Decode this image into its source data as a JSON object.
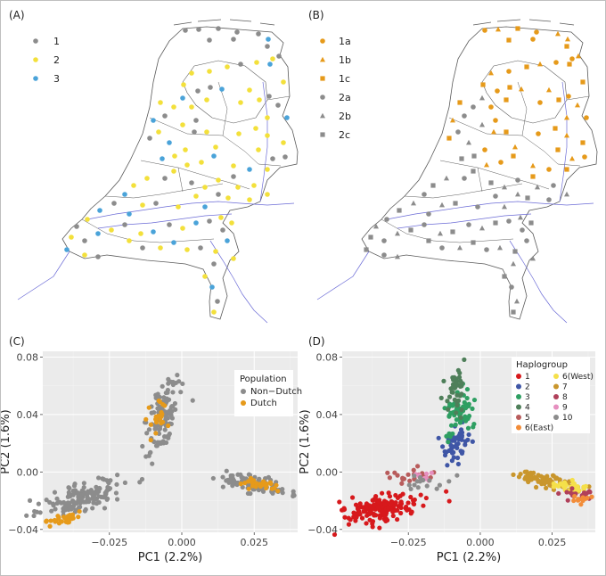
{
  "panel_labels": [
    "(A)",
    "(B)",
    "(C)",
    "(D)"
  ],
  "colors": {
    "grey": "#8c8c8c",
    "yellow": "#f3e03b",
    "blue": "#4aa3d9",
    "orange": "#e69a1a",
    "panel_bg": "#ebebeb",
    "map_line": "#5a5a5a",
    "river": "#6b6bd6"
  },
  "chart_data": [
    {
      "type": "scatter",
      "panel": "A",
      "legend": [
        {
          "label": "1",
          "color": "#8c8c8c",
          "shape": "circle"
        },
        {
          "label": "2",
          "color": "#f3e03b",
          "shape": "circle"
        },
        {
          "label": "3",
          "color": "#4aa3d9",
          "shape": "circle"
        }
      ],
      "legend_placement": "top-left"
    },
    {
      "type": "scatter",
      "panel": "B",
      "legend": [
        {
          "label": "1a",
          "color": "#e69a1a",
          "shape": "circle"
        },
        {
          "label": "1b",
          "color": "#e69a1a",
          "shape": "triangle"
        },
        {
          "label": "1c",
          "color": "#e69a1a",
          "shape": "square"
        },
        {
          "label": "2a",
          "color": "#8c8c8c",
          "shape": "circle"
        },
        {
          "label": "2b",
          "color": "#8c8c8c",
          "shape": "triangle"
        },
        {
          "label": "2c",
          "color": "#8c8c8c",
          "shape": "square"
        }
      ],
      "legend_placement": "top-left"
    },
    {
      "type": "scatter",
      "panel": "C",
      "xlabel": "PC1 (2.2%)",
      "ylabel": "PC2 (1.6%)",
      "xlim": [
        -0.048,
        0.04
      ],
      "ylim": [
        -0.042,
        0.084
      ],
      "xticks": [
        -0.025,
        0.0,
        0.025
      ],
      "xtick_labels": [
        "−0.025",
        "0.000",
        "0.025"
      ],
      "yticks": [
        -0.04,
        0.0,
        0.04,
        0.08
      ],
      "ytick_labels": [
        "−0.04",
        "0.00",
        "0.04",
        "0.08"
      ],
      "grid": true,
      "legend_title": "Population",
      "legend_placement": "top-right",
      "series": [
        {
          "name": "Non−Dutch",
          "color": "#8c8c8c"
        },
        {
          "name": "Dutch",
          "color": "#e69a1a"
        }
      ]
    },
    {
      "type": "scatter",
      "panel": "D",
      "xlabel": "PC1 (2.2%)",
      "ylabel": "PC2 (1.6%)",
      "xlim": [
        -0.048,
        0.04
      ],
      "ylim": [
        -0.042,
        0.084
      ],
      "xticks": [
        -0.025,
        0.0,
        0.025
      ],
      "xtick_labels": [
        "−0.025",
        "0.000",
        "0.025"
      ],
      "yticks": [
        -0.04,
        0.0,
        0.04,
        0.08
      ],
      "ytick_labels": [
        "−0.04",
        "0.00",
        "0.04",
        "0.08"
      ],
      "grid": true,
      "legend_title": "Haplogroup",
      "legend_placement": "top-right",
      "series": [
        {
          "name": "1",
          "color": "#d7191c"
        },
        {
          "name": "2",
          "color": "#3f56a6"
        },
        {
          "name": "3",
          "color": "#2e9f62"
        },
        {
          "name": "4",
          "color": "#4f7f5a"
        },
        {
          "name": "5",
          "color": "#b85c5c"
        },
        {
          "name": "6(East)",
          "color": "#f28c38"
        },
        {
          "name": "6(West)",
          "color": "#f5e04a"
        },
        {
          "name": "7",
          "color": "#c9962c"
        },
        {
          "name": "8",
          "color": "#b0405a"
        },
        {
          "name": "9",
          "color": "#e68fbf"
        },
        {
          "name": "10",
          "color": "#8c8c8c"
        }
      ]
    }
  ]
}
